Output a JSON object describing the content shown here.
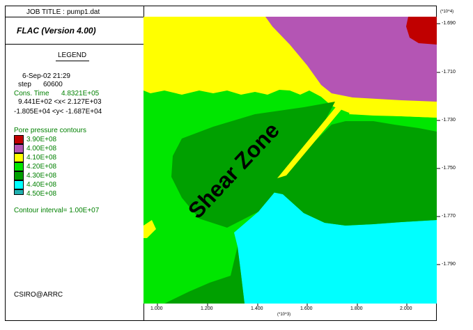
{
  "header": {
    "job_title_label": "JOB TITLE :",
    "job_title": "pump1.dat",
    "program": "FLAC (Version 4.00)"
  },
  "legend": {
    "title": "LEGEND",
    "date_time": "6-Sep-02  21:29",
    "step_label": "step",
    "step_value": "60600",
    "cons_time_label": "Cons. Time",
    "cons_time_value": "4.8321E+05",
    "x_range": "9.441E+02 <x<  2.127E+03",
    "y_range": "-1.805E+04 <y< -1.687E+04",
    "contours_title": "Pore pressure contours",
    "contour_levels": [
      {
        "label": "3.90E+08",
        "color": "#c00000"
      },
      {
        "label": "4.00E+08",
        "color": "#b455b4"
      },
      {
        "label": "4.10E+08",
        "color": "#ffff00"
      },
      {
        "label": "4.20E+08",
        "color": "#00e600"
      },
      {
        "label": "4.30E+08",
        "color": "#00a000"
      },
      {
        "label": "4.40E+08",
        "color": "#00ffff"
      },
      {
        "label": "4.50E+08",
        "color": "#20b0b0"
      }
    ],
    "contour_interval": "Contour interval= 1.00E+07",
    "credit": "CSIRO@ARRC"
  },
  "plot": {
    "annotation": "Shear Zone",
    "x_ticks": [
      "1.000",
      "1.200",
      "1.400",
      "1.600",
      "1.800",
      "2.000"
    ],
    "x_multiplier": "(*10^3)",
    "y_ticks": [
      "-1.690",
      "-1.710",
      "-1.730",
      "-1.750",
      "-1.770",
      "-1.790"
    ],
    "y_multiplier": "(*10^4)"
  }
}
